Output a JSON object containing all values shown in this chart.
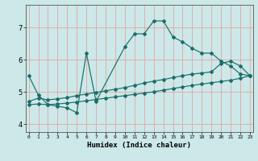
{
  "xlabel": "Humidex (Indice chaleur)",
  "bg_color": "#cce8e8",
  "line_color": "#1a6e6a",
  "grid_color_x": "#e89898",
  "grid_color_y": "#e89898",
  "ylim": [
    3.75,
    7.7
  ],
  "xlim": [
    -0.3,
    23.3
  ],
  "yticks": [
    4,
    5,
    6,
    7
  ],
  "xticks": [
    0,
    1,
    2,
    3,
    4,
    5,
    6,
    7,
    8,
    9,
    10,
    11,
    12,
    13,
    14,
    15,
    16,
    17,
    18,
    19,
    20,
    21,
    22,
    23
  ],
  "line1_x": [
    0,
    1,
    2,
    3,
    4,
    5,
    6,
    7,
    10,
    11,
    12,
    13,
    14,
    15,
    16,
    17,
    18,
    19,
    20,
    21,
    22,
    23
  ],
  "line1_y": [
    5.5,
    4.9,
    4.6,
    4.55,
    4.5,
    4.35,
    6.2,
    4.7,
    6.4,
    6.8,
    6.8,
    7.2,
    7.2,
    6.7,
    6.55,
    6.35,
    6.2,
    6.2,
    5.95,
    5.8,
    5.55,
    5.5
  ],
  "line2_x": [
    0,
    1,
    2,
    3,
    4,
    5,
    6,
    7,
    8,
    9,
    10,
    11,
    12,
    13,
    14,
    15,
    16,
    17,
    18,
    19,
    20,
    21,
    22,
    23
  ],
  "line2_y": [
    4.7,
    4.8,
    4.75,
    4.78,
    4.82,
    4.88,
    4.93,
    4.98,
    5.03,
    5.08,
    5.13,
    5.2,
    5.27,
    5.33,
    5.38,
    5.44,
    5.5,
    5.55,
    5.58,
    5.62,
    5.88,
    5.95,
    5.8,
    5.5
  ],
  "line3_x": [
    0,
    1,
    2,
    3,
    4,
    5,
    6,
    7,
    8,
    9,
    10,
    11,
    12,
    13,
    14,
    15,
    16,
    17,
    18,
    19,
    20,
    21,
    22,
    23
  ],
  "line3_y": [
    4.6,
    4.62,
    4.6,
    4.62,
    4.65,
    4.68,
    4.72,
    4.76,
    4.8,
    4.84,
    4.88,
    4.92,
    4.96,
    5.0,
    5.05,
    5.1,
    5.15,
    5.2,
    5.24,
    5.28,
    5.32,
    5.36,
    5.42,
    5.5
  ]
}
